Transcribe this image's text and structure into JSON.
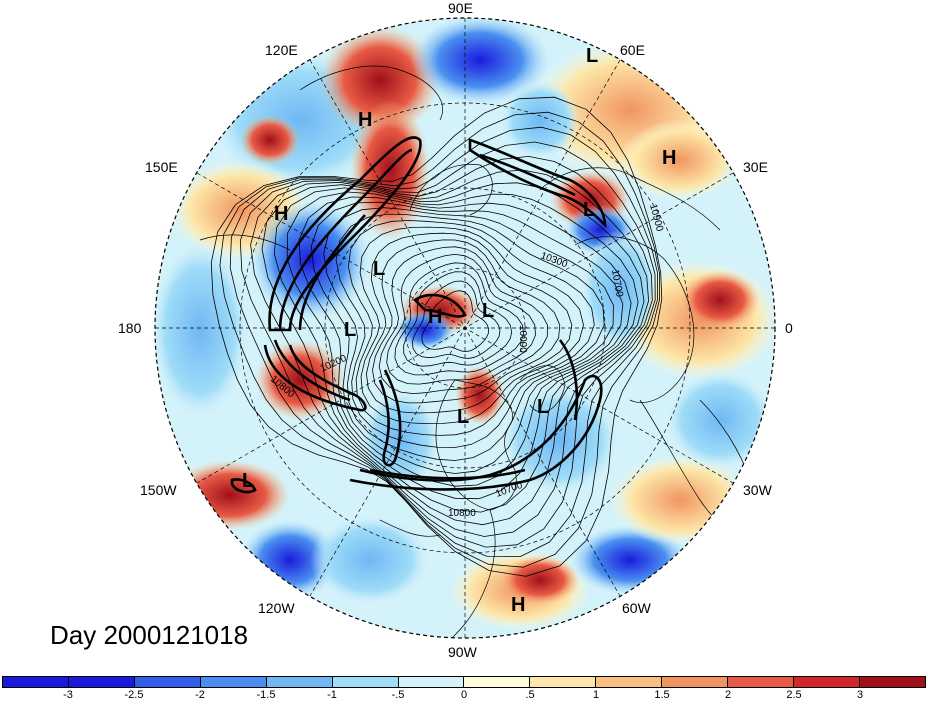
{
  "longitude_labels": {
    "lon_90e": "90E",
    "lon_60e": "60E",
    "lon_120e": "120E",
    "lon_30e": "30E",
    "lon_150e": "150E",
    "lon_180": "180",
    "lon_0": "0",
    "lon_150w": "150W",
    "lon_30w": "30W",
    "lon_120w": "120W",
    "lon_60w": "60W",
    "lon_90w": "90W"
  },
  "pressure_centers": [
    {
      "id": "c1",
      "text": "L"
    },
    {
      "id": "c2",
      "text": "H"
    },
    {
      "id": "c3",
      "text": "H"
    },
    {
      "id": "c4",
      "text": "H"
    },
    {
      "id": "c5",
      "text": "L"
    },
    {
      "id": "c6",
      "text": "L"
    },
    {
      "id": "c7",
      "text": "L"
    },
    {
      "id": "c8",
      "text": "H"
    },
    {
      "id": "c9",
      "text": "L"
    },
    {
      "id": "c10",
      "text": "L"
    },
    {
      "id": "c11",
      "text": "L"
    },
    {
      "id": "c12",
      "text": "L"
    },
    {
      "id": "c13",
      "text": "H"
    }
  ],
  "contour_labels": {
    "c10300": "10300",
    "c10700a": "10700",
    "c10900": "10900",
    "c10200": "10200",
    "c10800a": "10800",
    "c10000": "10000",
    "c10700b": "10700",
    "c10800b": "10800"
  },
  "day_label": "Day 2000121018",
  "colorbar": {
    "colors": [
      "#1a1adc",
      "#2e5ee8",
      "#4a8ff0",
      "#6fb8f4",
      "#9fdcf8",
      "#d4f2fa",
      "#fdfbd8",
      "#fde6a8",
      "#f9c07f",
      "#f19560",
      "#e85a45",
      "#d0272c",
      "#a0101a"
    ],
    "tick_labels": [
      "-3",
      "-2.5",
      "-2",
      "-1.5",
      "-1",
      "-.5",
      "0",
      ".5",
      "1",
      "1.5",
      "2",
      "2.5",
      "3"
    ]
  },
  "colors": {
    "land_outline": "#000000",
    "contour": "#000000"
  }
}
